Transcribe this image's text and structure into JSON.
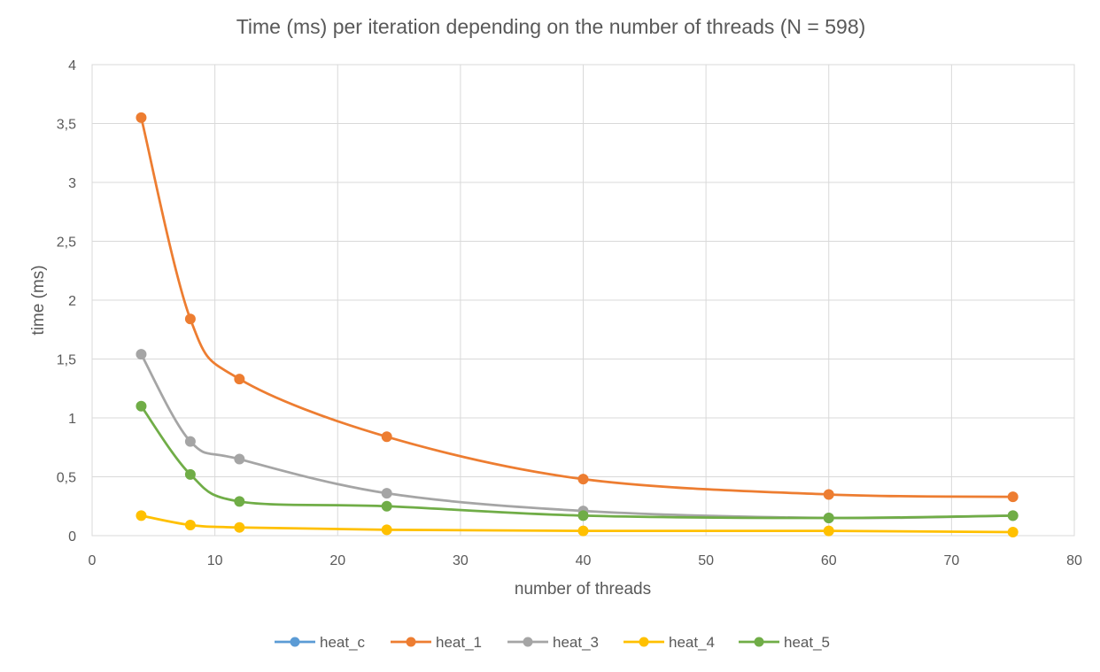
{
  "chart_data": {
    "type": "line",
    "title": "Time (ms) per iteration depending on the number of threads (N = 598)",
    "xlabel": "number of threads",
    "ylabel": "time (ms)",
    "xlim": [
      0,
      80
    ],
    "ylim": [
      0,
      4
    ],
    "xticks": [
      0,
      10,
      20,
      30,
      40,
      50,
      60,
      70,
      80
    ],
    "yticks": [
      0,
      0.5,
      1,
      1.5,
      2,
      2.5,
      3,
      3.5,
      4
    ],
    "decimal_separator": ",",
    "grid": true,
    "smooth": true,
    "legend_position": "bottom",
    "x": [
      4,
      8,
      12,
      24,
      40,
      60,
      75
    ],
    "series": [
      {
        "name": "heat_c",
        "color": "#5B9BD5",
        "values": [
          null,
          null,
          null,
          null,
          null,
          null,
          null
        ]
      },
      {
        "name": "heat_1",
        "color": "#ED7D31",
        "values": [
          3.55,
          1.84,
          1.33,
          0.84,
          0.48,
          0.35,
          0.33
        ]
      },
      {
        "name": "heat_3",
        "color": "#A5A5A5",
        "values": [
          1.54,
          0.8,
          0.65,
          0.36,
          0.21,
          0.15,
          0.17
        ]
      },
      {
        "name": "heat_4",
        "color": "#FFC000",
        "values": [
          0.17,
          0.09,
          0.07,
          0.05,
          0.04,
          0.04,
          0.03
        ]
      },
      {
        "name": "heat_5",
        "color": "#70AD47",
        "values": [
          1.1,
          0.52,
          0.29,
          0.25,
          0.17,
          0.15,
          0.17
        ]
      }
    ]
  }
}
